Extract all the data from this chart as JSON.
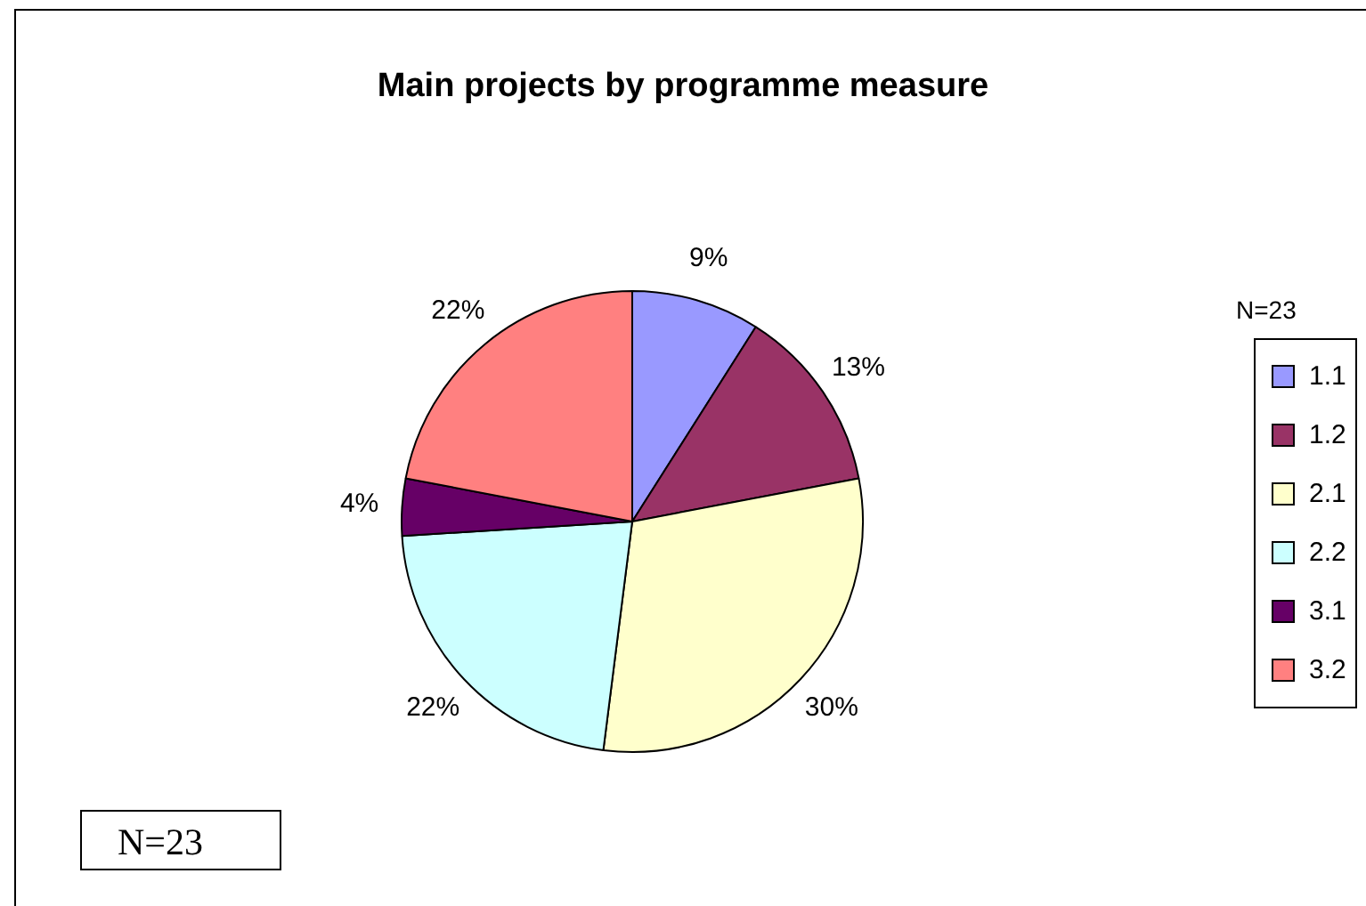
{
  "chart_data": {
    "type": "pie",
    "title": "Main projects by programme measure",
    "categories": [
      "1.1",
      "1.2",
      "2.1",
      "2.2",
      "3.1",
      "3.2"
    ],
    "values": [
      9,
      13,
      30,
      22,
      4,
      22
    ],
    "colors": [
      "#9999ff",
      "#993366",
      "#ffffcc",
      "#ccffff",
      "#660066",
      "#ff8080"
    ],
    "value_labels": [
      "9%",
      "13%",
      "30%",
      "22%",
      "4%",
      "22%"
    ],
    "legend": "right",
    "annotations": [
      "N=23",
      "N=23"
    ]
  }
}
